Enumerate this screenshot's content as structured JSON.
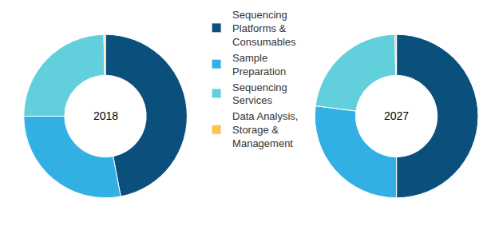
{
  "chart_data": {
    "type": "donut",
    "categories": [
      "Sequencing Platforms & Consumables",
      "Sample Preparation",
      "Sequencing Services",
      "Data Analysis, Storage & Management"
    ],
    "colors": [
      "#0b4f7c",
      "#33b0e3",
      "#62d0dc",
      "#ffc04d"
    ],
    "legend": "center",
    "series": [
      {
        "name": "2018",
        "values": [
          47,
          28,
          24.7,
          0.3
        ]
      },
      {
        "name": "2027",
        "values": [
          50,
          27,
          22.7,
          0.3
        ]
      }
    ]
  }
}
